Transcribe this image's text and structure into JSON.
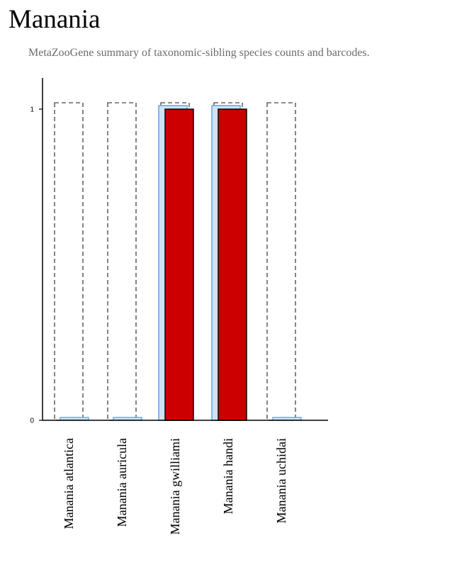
{
  "page": {
    "title": "Manania",
    "subtitle": "MetaZooGene summary of taxonomic-sibling species counts and barcodes."
  },
  "colors": {
    "outline_dashed": "#666666",
    "light_bar_fill": "#cfe3f5",
    "light_bar_stroke": "#6fa8dc",
    "red_bar_fill": "#cc0000",
    "red_bar_stroke": "#111111",
    "axis": "#000000"
  },
  "chart_data": {
    "type": "bar",
    "categories": [
      "Manania atlantica",
      "Manania auricula",
      "Manania gwilliami",
      "Manania handi",
      "Manania uchidai"
    ],
    "series": [
      {
        "values": [
          1,
          1,
          1,
          1,
          1
        ],
        "style": "dashed-outline"
      },
      {
        "values": [
          0,
          0,
          1,
          1,
          0
        ],
        "style": "light-blue"
      },
      {
        "values": [
          0,
          0,
          1,
          1,
          0
        ],
        "style": "red"
      }
    ],
    "y_ticks": [
      "0",
      "1"
    ],
    "ylim": [
      0,
      1
    ],
    "xlabel": "",
    "ylabel": "",
    "grid": false
  }
}
